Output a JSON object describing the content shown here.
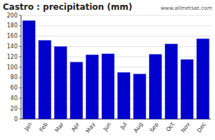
{
  "chart_data": {
    "type": "bar",
    "title": "Castro : precipitation (mm)",
    "categories": [
      "Jan",
      "Feb",
      "Mar",
      "Apr",
      "May",
      "Jun",
      "Jul",
      "Aug",
      "Sep",
      "Oct",
      "Nov",
      "Dec"
    ],
    "values": [
      190,
      152,
      140,
      110,
      124,
      126,
      90,
      87,
      125,
      145,
      115,
      155
    ],
    "color": "#0000CC",
    "ylim": [
      0,
      200
    ],
    "yticks": [
      0,
      20,
      40,
      60,
      80,
      100,
      120,
      140,
      160,
      180,
      200
    ],
    "grid": true,
    "annotations": [
      "www.allmetsat.com"
    ]
  }
}
